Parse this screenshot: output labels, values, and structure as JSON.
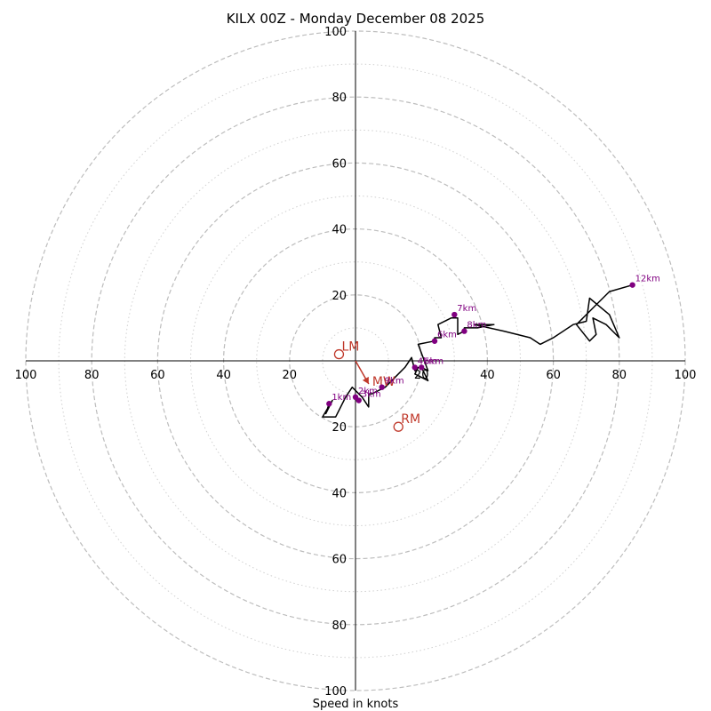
{
  "chart_data": {
    "type": "hodograph",
    "title": "KILX 00Z - Monday December 08 2025",
    "xlabel": "Speed in knots",
    "range": [
      -100,
      100
    ],
    "ring_major": [
      20,
      40,
      60,
      80,
      100
    ],
    "ring_minor": [
      10,
      30,
      50,
      70,
      90
    ],
    "tick_values": [
      100,
      80,
      60,
      40,
      20
    ],
    "x_tick_labels": [
      "100",
      "80",
      "60",
      "40",
      "20",
      "20",
      "40",
      "60",
      "80",
      "100"
    ],
    "y_tick_labels": [
      "100",
      "80",
      "60",
      "40",
      "20",
      "20",
      "40",
      "60",
      "80",
      "100"
    ],
    "hodograph_line": [
      [
        -8,
        -13
      ],
      [
        -9,
        -16
      ],
      [
        -7,
        -12
      ],
      [
        -10,
        -17
      ],
      [
        -6,
        -17
      ],
      [
        -3,
        -11
      ],
      [
        -1,
        -8
      ],
      [
        2,
        -11
      ],
      [
        4,
        -14
      ],
      [
        4,
        -10
      ],
      [
        5,
        -10
      ],
      [
        9,
        -8
      ],
      [
        13,
        -4
      ],
      [
        15,
        -2
      ],
      [
        17,
        1
      ],
      [
        18,
        -3
      ],
      [
        19,
        -2
      ],
      [
        18,
        -4
      ],
      [
        22,
        -6
      ],
      [
        20,
        -2
      ],
      [
        22,
        -3
      ],
      [
        19,
        5
      ],
      [
        24,
        6
      ],
      [
        24,
        7
      ],
      [
        26,
        7
      ],
      [
        25,
        11
      ],
      [
        29,
        13
      ],
      [
        31,
        13
      ],
      [
        31,
        8
      ],
      [
        33,
        9
      ],
      [
        33,
        10
      ],
      [
        37,
        10
      ],
      [
        42,
        11
      ],
      [
        36,
        11
      ],
      [
        45,
        9
      ],
      [
        53,
        7
      ],
      [
        56,
        5
      ],
      [
        60,
        7
      ],
      [
        66,
        11
      ],
      [
        70,
        12
      ],
      [
        71,
        19
      ],
      [
        77,
        14
      ],
      [
        80,
        7
      ],
      [
        76,
        11
      ],
      [
        72,
        13
      ],
      [
        73,
        8
      ],
      [
        71,
        6
      ],
      [
        67,
        11
      ],
      [
        72,
        16
      ],
      [
        77,
        21
      ],
      [
        84,
        23
      ]
    ],
    "height_markers": [
      {
        "label": "1km",
        "u": -8,
        "v": -13
      },
      {
        "label": "2km",
        "u": 0,
        "v": -11
      },
      {
        "label": "3km",
        "u": 1,
        "v": -12
      },
      {
        "label": "4km",
        "u": 18,
        "v": -2
      },
      {
        "label": "5km",
        "u": 20,
        "v": -2
      },
      {
        "label": "6km",
        "u": 24,
        "v": 6
      },
      {
        "label": "7km",
        "u": 30,
        "v": 14
      },
      {
        "label": "8km",
        "u": 33,
        "v": 9
      },
      {
        "label": "9km",
        "u": 8,
        "v": -8
      },
      {
        "label": "12km",
        "u": 84,
        "v": 23
      }
    ],
    "storm_motion": [
      {
        "label": "LM",
        "u": -5,
        "v": 2
      },
      {
        "label": "RM",
        "u": 13,
        "v": -20
      },
      {
        "label": "MW",
        "u": 4,
        "v": -7
      }
    ],
    "colors": {
      "line": "#000000",
      "marker": "#800080",
      "storm": "#c0392b",
      "ring_major": "#bdbdbd",
      "ring_minor": "#d0d0d0",
      "axis": "#000000"
    }
  }
}
